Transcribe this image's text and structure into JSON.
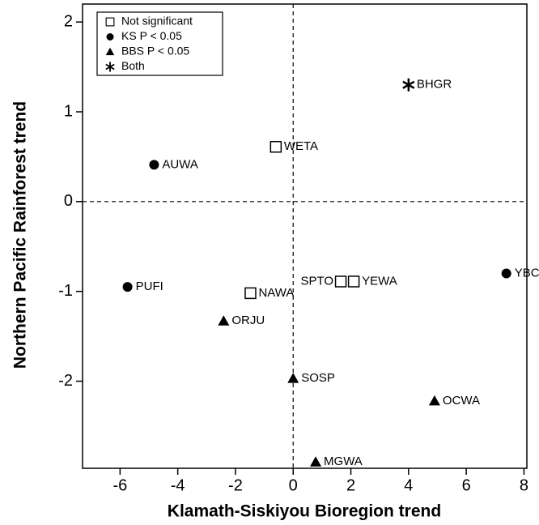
{
  "chart_data": {
    "type": "scatter",
    "x_label": "Klamath-Siskiyou Bioregion trend",
    "y_label": "Northern Pacific Rainforest trend",
    "xlim": [
      -7.3,
      8.1
    ],
    "ylim": [
      -2.97,
      2.2
    ],
    "xticks": [
      -6,
      -4,
      -2,
      0,
      2,
      4,
      6,
      8
    ],
    "yticks": [
      -2,
      -1,
      0,
      1,
      2
    ],
    "legend": "top-left",
    "series": [
      {
        "name": "Not significant",
        "marker": "square",
        "color": "#000000",
        "x": [
          -0.6,
          -1.48,
          1.65,
          2.1
        ],
        "y": [
          0.61,
          -1.02,
          -0.89,
          -0.89
        ],
        "labels": [
          "WETA",
          "NAWA",
          "SPTO",
          "YEWA"
        ]
      },
      {
        "name": "KS P < 0.05",
        "marker": "circle",
        "color": "#000000",
        "x": [
          -4.82,
          -5.74,
          7.39
        ],
        "y": [
          0.41,
          -0.95,
          -0.8
        ],
        "labels": [
          "AUWA",
          "PUFI",
          "YBCH"
        ]
      },
      {
        "name": "BBS P < 0.05",
        "marker": "triangle",
        "color": "#000000",
        "x": [
          -2.41,
          0.0,
          4.9,
          0.78
        ],
        "y": [
          -1.33,
          -1.97,
          -2.22,
          -2.9
        ],
        "labels": [
          "ORJU",
          "SOSP",
          "OCWA",
          "MGWA"
        ]
      },
      {
        "name": "Both",
        "marker": "star",
        "color": "#000000",
        "x": [
          4.0
        ],
        "y": [
          1.3
        ],
        "labels": [
          "BHGR"
        ]
      }
    ]
  }
}
